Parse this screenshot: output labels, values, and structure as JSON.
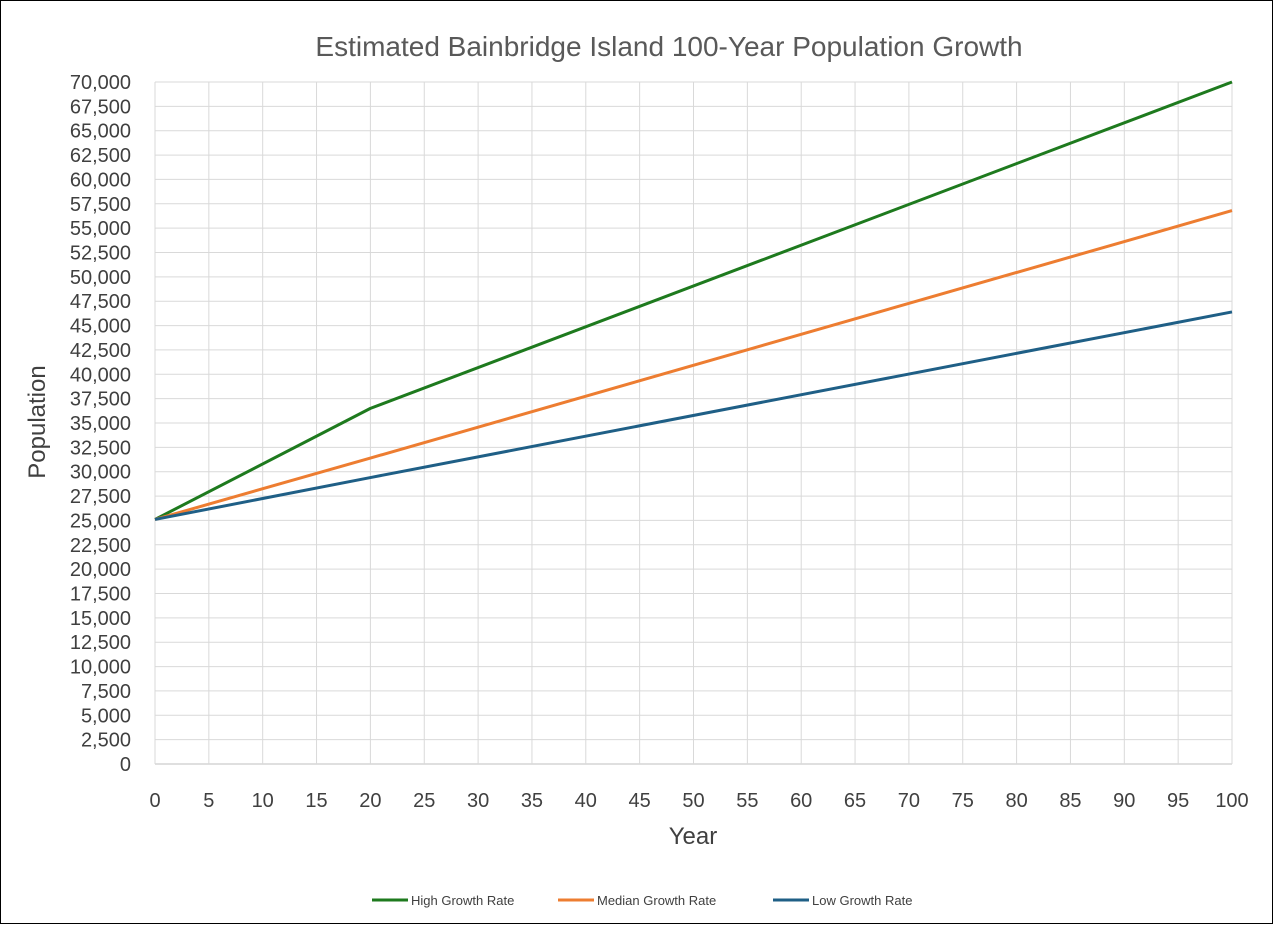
{
  "chart_data": {
    "type": "line",
    "title": "Estimated Bainbridge Island 100-Year Population Growth",
    "xlabel": "Year",
    "ylabel": "Population",
    "xlim": [
      0,
      100
    ],
    "ylim": [
      0,
      70000
    ],
    "x_ticks": [
      0,
      5,
      10,
      15,
      20,
      25,
      30,
      35,
      40,
      45,
      50,
      55,
      60,
      65,
      70,
      75,
      80,
      85,
      90,
      95,
      100
    ],
    "x_tick_labels": [
      "0",
      "5",
      "10",
      "15",
      "20",
      "25",
      "30",
      "35",
      "40",
      "45",
      "50",
      "55",
      "60",
      "65",
      "70",
      "75",
      "80",
      "85",
      "90",
      "95",
      "100"
    ],
    "y_ticks": [
      0,
      2500,
      5000,
      7500,
      10000,
      12500,
      15000,
      17500,
      20000,
      22500,
      25000,
      27500,
      30000,
      32500,
      35000,
      37500,
      40000,
      42500,
      45000,
      47500,
      50000,
      52500,
      55000,
      57500,
      60000,
      62500,
      65000,
      67500,
      70000
    ],
    "y_tick_labels": [
      "0",
      "2,500",
      "5,000",
      "7,500",
      "10,000",
      "12,500",
      "15,000",
      "17,500",
      "20,000",
      "22,500",
      "25,000",
      "27,500",
      "30,000",
      "32,500",
      "35,000",
      "37,500",
      "40,000",
      "42,500",
      "45,000",
      "47,500",
      "50,000",
      "52,500",
      "55,000",
      "57,500",
      "60,000",
      "62,500",
      "65,000",
      "67,500",
      "70,000"
    ],
    "grid": true,
    "legend_position": "bottom",
    "x": [
      0,
      20,
      100
    ],
    "series": [
      {
        "name": "High Growth Rate",
        "color": "#1e7a1e",
        "values": [
          25100,
          36500,
          70000
        ]
      },
      {
        "name": "Median Growth Rate",
        "color": "#ed7d31",
        "values": [
          25100,
          31400,
          56800
        ]
      },
      {
        "name": "Low Growth Rate",
        "color": "#1f5f86",
        "values": [
          25100,
          29400,
          46400
        ]
      }
    ]
  }
}
